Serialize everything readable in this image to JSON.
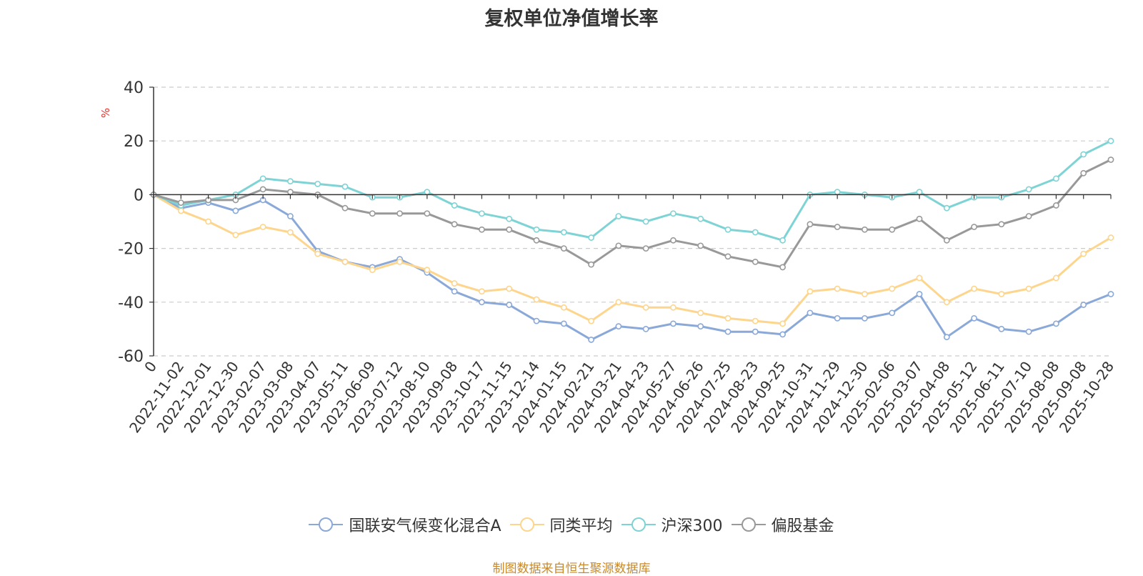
{
  "chart_data": {
    "type": "line",
    "title": "复权单位净值增长率",
    "ylabel": "%",
    "xlabel": "",
    "ylim": [
      -60,
      40
    ],
    "yticks": [
      40,
      20,
      0,
      -20,
      -40,
      -60
    ],
    "grid": true,
    "legend_position": "bottom-center",
    "categories": [
      "0",
      "2022-11-02",
      "2022-12-01",
      "2022-12-30",
      "2023-02-07",
      "2023-03-08",
      "2023-04-07",
      "2023-05-11",
      "2023-06-09",
      "2023-07-12",
      "2023-08-10",
      "2023-09-08",
      "2023-10-17",
      "2023-11-15",
      "2023-12-14",
      "2024-01-15",
      "2024-02-21",
      "2024-03-21",
      "2024-04-23",
      "2024-05-27",
      "2024-06-26",
      "2024-07-25",
      "2024-08-23",
      "2024-09-25",
      "2024-10-31",
      "2024-11-29",
      "2024-12-30",
      "2025-02-06",
      "2025-03-07",
      "2025-04-08",
      "2025-05-12",
      "2025-06-11",
      "2025-07-10",
      "2025-08-08",
      "2025-09-08",
      "2025-10-28"
    ],
    "series": [
      {
        "name": "国联安气候变化混合A",
        "color": "#8aa8d8",
        "values": [
          0,
          -5,
          -3,
          -6,
          -2,
          -8,
          -21,
          -25,
          -27,
          -24,
          -29,
          -36,
          -40,
          -41,
          -47,
          -48,
          -54,
          -49,
          -50,
          -48,
          -49,
          -51,
          -51,
          -52,
          -44,
          -46,
          -46,
          -44,
          -37,
          -53,
          -46,
          -50,
          -51,
          -48,
          -41,
          -37
        ]
      },
      {
        "name": "同类平均",
        "color": "#fdd58c",
        "values": [
          0,
          -6,
          -10,
          -15,
          -12,
          -14,
          -22,
          -25,
          -28,
          -25,
          -28,
          -33,
          -36,
          -35,
          -39,
          -42,
          -47,
          -40,
          -42,
          -42,
          -44,
          -46,
          -47,
          -48,
          -36,
          -35,
          -37,
          -35,
          -31,
          -40,
          -35,
          -37,
          -35,
          -31,
          -22,
          -16
        ]
      },
      {
        "name": "沪深300",
        "color": "#7ed3d4",
        "values": [
          0,
          -4,
          -2,
          0,
          6,
          5,
          4,
          3,
          -1,
          -1,
          1,
          -4,
          -7,
          -9,
          -13,
          -14,
          -16,
          -8,
          -10,
          -7,
          -9,
          -13,
          -14,
          -17,
          0,
          1,
          0,
          -1,
          1,
          -5,
          -1,
          -1,
          2,
          6,
          15,
          20
        ]
      },
      {
        "name": "偏股基金",
        "color": "#999999",
        "values": [
          0,
          -3,
          -2,
          -2,
          2,
          1,
          0,
          -5,
          -7,
          -7,
          -7,
          -11,
          -13,
          -13,
          -17,
          -20,
          -26,
          -19,
          -20,
          -17,
          -19,
          -23,
          -25,
          -27,
          -11,
          -12,
          -13,
          -13,
          -9,
          -17,
          -12,
          -11,
          -8,
          -4,
          8,
          13
        ]
      }
    ]
  },
  "source_note": "制图数据来自恒生聚源数据库"
}
